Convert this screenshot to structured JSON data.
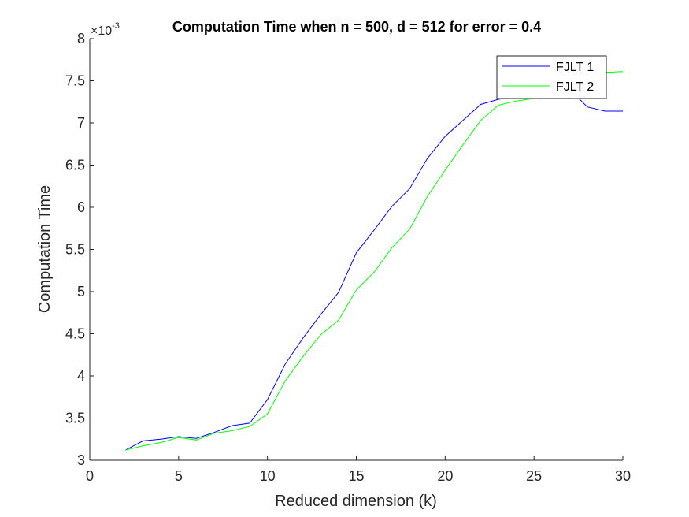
{
  "chart_data": {
    "type": "line",
    "title": "Computation Time when n = 500, d = 512 for error = 0.4",
    "xlabel": "Reduced dimension (k)",
    "ylabel": "Computation Time",
    "exponent_base": "×10",
    "exponent_power": "-3",
    "xlim": [
      0,
      30
    ],
    "ylim": [
      3,
      8
    ],
    "xticks": [
      0,
      5,
      10,
      15,
      20,
      25,
      30
    ],
    "xtick_labels": [
      "0",
      "5",
      "10",
      "15",
      "20",
      "25",
      "30"
    ],
    "yticks": [
      3,
      3.5,
      4,
      4.5,
      5,
      5.5,
      6,
      6.5,
      7,
      7.5,
      8
    ],
    "ytick_labels": [
      "3",
      "3.5",
      "4",
      "4.5",
      "5",
      "5.5",
      "6",
      "6.5",
      "7",
      "7.5",
      "8"
    ],
    "grid": false,
    "legend_position": "top-right",
    "x": [
      2,
      3,
      4,
      5,
      6,
      7,
      8,
      9,
      10,
      11,
      12,
      13,
      14,
      15,
      16,
      17,
      18,
      19,
      20,
      21,
      22,
      23,
      24,
      25,
      26,
      27,
      28,
      29,
      30
    ],
    "series": [
      {
        "name": "FJLT 1",
        "color": "#0000ff",
        "values": [
          3.12,
          3.23,
          3.25,
          3.28,
          3.26,
          3.33,
          3.41,
          3.44,
          3.72,
          4.14,
          4.45,
          4.73,
          4.99,
          5.46,
          5.73,
          6.01,
          6.22,
          6.58,
          6.84,
          7.03,
          7.22,
          7.28,
          7.31,
          7.32,
          7.33,
          7.4,
          7.19,
          7.14,
          7.14
        ]
      },
      {
        "name": "FJLT 2",
        "color": "#00ff00",
        "values": [
          3.12,
          3.17,
          3.21,
          3.27,
          3.24,
          3.32,
          3.35,
          3.4,
          3.55,
          3.94,
          4.23,
          4.49,
          4.66,
          5.02,
          5.23,
          5.52,
          5.74,
          6.13,
          6.44,
          6.74,
          7.03,
          7.21,
          7.26,
          7.29,
          7.35,
          7.45,
          7.56,
          7.6,
          7.61
        ]
      }
    ]
  }
}
